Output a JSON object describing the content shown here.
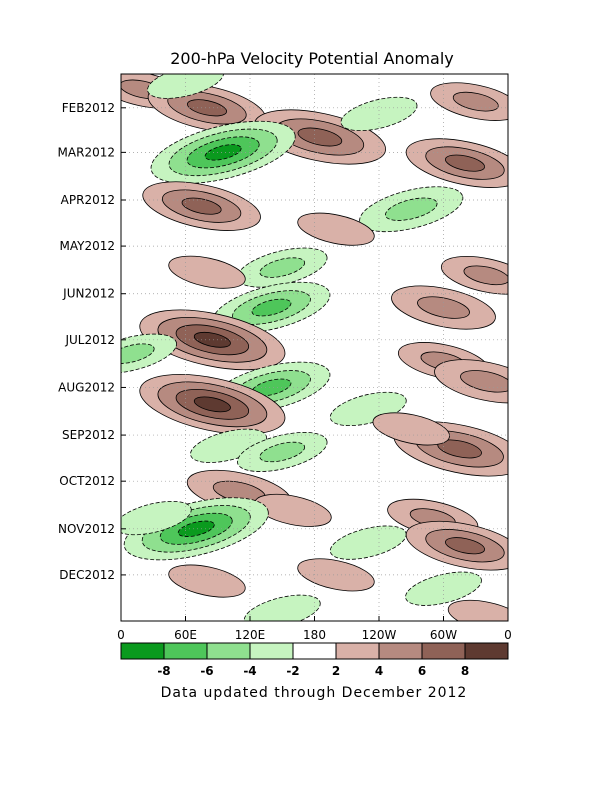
{
  "chart_data": {
    "type": "heatmap",
    "title": "200-hPa Velocity Potential Anomaly",
    "footer": "Data updated through December 2012",
    "x_ticks": [
      "0",
      "60E",
      "120E",
      "180",
      "120W",
      "60W",
      "0"
    ],
    "y_ticks": [
      "FEB2012",
      "MAR2012",
      "APR2012",
      "MAY2012",
      "JUN2012",
      "JUL2012",
      "AUG2012",
      "SEP2012",
      "OCT2012",
      "NOV2012",
      "DEC2012"
    ],
    "x_range_deg_east": [
      0,
      360
    ],
    "y_range": [
      "2012-01-10",
      "2012-12-31"
    ],
    "contour_interval": 2,
    "zero_line_label": "0",
    "colorbar": {
      "labels": [
        "-8",
        "-6",
        "-4",
        "-2",
        "2",
        "4",
        "6",
        "8"
      ],
      "bins": [
        {
          "range": "< -8",
          "color": "#0a9a1e"
        },
        {
          "range": "-8 to -6",
          "color": "#4ec65a"
        },
        {
          "range": "-6 to -4",
          "color": "#8fe08f"
        },
        {
          "range": "-4 to -2",
          "color": "#c6f4c0"
        },
        {
          "range": "-2 to 2",
          "color": "#ffffff"
        },
        {
          "range": "2 to 4",
          "color": "#d9b1a8"
        },
        {
          "range": "4 to 6",
          "color": "#b68a80"
        },
        {
          "range": "6 to 8",
          "color": "#8f6257"
        },
        {
          "range": "> 8",
          "color": "#5e3a31"
        }
      ]
    },
    "anomaly_centers": [
      {
        "lon": 20,
        "date": "2012-01-20",
        "value": 4
      },
      {
        "lon": 80,
        "date": "2012-02-01",
        "value": 6
      },
      {
        "lon": 185,
        "date": "2012-02-20",
        "value": 7
      },
      {
        "lon": 320,
        "date": "2012-03-08",
        "value": 6
      },
      {
        "lon": 330,
        "date": "2012-01-28",
        "value": 4
      },
      {
        "lon": 95,
        "date": "2012-03-01",
        "value": -8
      },
      {
        "lon": 60,
        "date": "2012-01-15",
        "value": -3
      },
      {
        "lon": 240,
        "date": "2012-02-05",
        "value": -3
      },
      {
        "lon": 75,
        "date": "2012-04-05",
        "value": 6
      },
      {
        "lon": 270,
        "date": "2012-04-07",
        "value": -5
      },
      {
        "lon": 200,
        "date": "2012-04-20",
        "value": 3
      },
      {
        "lon": 150,
        "date": "2012-05-15",
        "value": -4
      },
      {
        "lon": 140,
        "date": "2012-06-10",
        "value": -6
      },
      {
        "lon": 80,
        "date": "2012-05-18",
        "value": 3
      },
      {
        "lon": 340,
        "date": "2012-05-20",
        "value": 4
      },
      {
        "lon": 300,
        "date": "2012-06-10",
        "value": 5
      },
      {
        "lon": 85,
        "date": "2012-07-01",
        "value": 8
      },
      {
        "lon": 10,
        "date": "2012-07-10",
        "value": -4
      },
      {
        "lon": 300,
        "date": "2012-07-15",
        "value": 4
      },
      {
        "lon": 340,
        "date": "2012-07-28",
        "value": 5
      },
      {
        "lon": 140,
        "date": "2012-08-01",
        "value": -6
      },
      {
        "lon": 85,
        "date": "2012-08-12",
        "value": 8
      },
      {
        "lon": 230,
        "date": "2012-08-15",
        "value": -3
      },
      {
        "lon": 315,
        "date": "2012-09-10",
        "value": 7
      },
      {
        "lon": 100,
        "date": "2012-09-08",
        "value": -3
      },
      {
        "lon": 150,
        "date": "2012-09-12",
        "value": -4
      },
      {
        "lon": 270,
        "date": "2012-08-28",
        "value": 3
      },
      {
        "lon": 110,
        "date": "2012-10-08",
        "value": 5
      },
      {
        "lon": 160,
        "date": "2012-10-20",
        "value": 3
      },
      {
        "lon": 290,
        "date": "2012-10-25",
        "value": 4
      },
      {
        "lon": 70,
        "date": "2012-11-01",
        "value": -8
      },
      {
        "lon": 30,
        "date": "2012-10-25",
        "value": -3
      },
      {
        "lon": 230,
        "date": "2012-11-10",
        "value": -3
      },
      {
        "lon": 320,
        "date": "2012-11-12",
        "value": 6
      },
      {
        "lon": 80,
        "date": "2012-12-05",
        "value": 3
      },
      {
        "lon": 300,
        "date": "2012-12-10",
        "value": -3
      },
      {
        "lon": 200,
        "date": "2012-12-01",
        "value": 3
      },
      {
        "lon": 340,
        "date": "2012-12-28",
        "value": 3
      },
      {
        "lon": 150,
        "date": "2012-12-25",
        "value": -3
      }
    ]
  }
}
